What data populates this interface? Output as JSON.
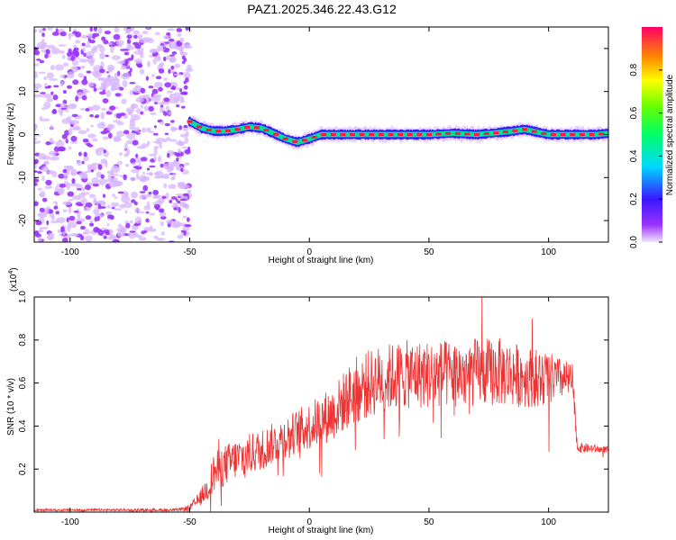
{
  "title": "PAZ1.2025.346.22.43.G12",
  "colors": {
    "snr_line": "#ee3333",
    "noise_purple": "#9a33ff",
    "noise_light": "#d7b6ff",
    "track_core": "#ff1a3c",
    "track_mid": "#00e0a0",
    "track_edge": "#3a18ff"
  },
  "chart_data": [
    {
      "id": "spectrogram",
      "type": "heatmap",
      "title": "PAZ1.2025.346.22.43.G12",
      "xlabel": "Height of straight line (km)",
      "ylabel": "Frequency (Hz)",
      "xlim": [
        -115,
        125
      ],
      "ylim": [
        -25,
        25
      ],
      "xticks": [
        -100,
        -50,
        0,
        50,
        100
      ],
      "yticks": [
        -20,
        -10,
        0,
        10,
        20
      ],
      "noise_region_x": [
        -115,
        -50
      ],
      "signal_track": {
        "x": [
          -50,
          -45,
          -40,
          -35,
          -30,
          -25,
          -20,
          -15,
          -10,
          -5,
          0,
          5,
          10,
          20,
          30,
          40,
          50,
          60,
          70,
          80,
          85,
          90,
          100,
          110,
          120,
          125
        ],
        "frequency_hz": [
          3,
          1.5,
          0.8,
          0.8,
          1.2,
          1.8,
          1.5,
          0.3,
          -1,
          -1.8,
          -1,
          0,
          0,
          0,
          0,
          0,
          0,
          0.3,
          0,
          0.5,
          0.8,
          1.2,
          0,
          0,
          0,
          0.3
        ]
      },
      "colorbar": {
        "label": "Normalized spectral amplitude",
        "range": [
          0,
          1
        ],
        "ticks": [
          "0.0",
          "0.2",
          "0.4",
          "0.6",
          "0.8"
        ],
        "ticks_values": [
          0,
          0.2,
          0.4,
          0.6,
          0.8
        ]
      }
    },
    {
      "id": "snr",
      "type": "line",
      "xlabel": "Height of straight line (km)",
      "ylabel": "SNR (10 * v/v)",
      "scale_label_main": "(x10",
      "scale_label_exp": "4",
      "scale_label_end": ")",
      "xlim": [
        -115,
        125
      ],
      "ylim": [
        0,
        1.0
      ],
      "xticks": [
        -100,
        -50,
        0,
        50,
        100
      ],
      "yticks": [
        0.2,
        0.4,
        0.6,
        0.8,
        1.0
      ],
      "ytick_labels": [
        "0.2",
        "0.4",
        "0.6",
        "0.8",
        "1.0"
      ],
      "envelope": {
        "x": [
          -115,
          -55,
          -50,
          -46,
          -42,
          -40,
          -35,
          -30,
          -20,
          -10,
          0,
          10,
          15,
          20,
          30,
          40,
          50,
          60,
          70,
          80,
          90,
          100,
          105,
          110,
          112,
          125
        ],
        "mean": [
          0.01,
          0.01,
          0.02,
          0.06,
          0.12,
          0.18,
          0.22,
          0.25,
          0.29,
          0.35,
          0.4,
          0.46,
          0.52,
          0.57,
          0.62,
          0.64,
          0.64,
          0.64,
          0.65,
          0.65,
          0.63,
          0.62,
          0.62,
          0.61,
          0.3,
          0.29
        ],
        "noise": [
          0.003,
          0.004,
          0.01,
          0.02,
          0.04,
          0.06,
          0.06,
          0.06,
          0.06,
          0.06,
          0.07,
          0.08,
          0.09,
          0.1,
          0.1,
          0.1,
          0.1,
          0.1,
          0.1,
          0.1,
          0.09,
          0.08,
          0.06,
          0.05,
          0.015,
          0.01
        ]
      },
      "peaks": [
        {
          "x": -38,
          "y": 0.34
        },
        {
          "x": 72,
          "y": 1.0
        },
        {
          "x": 93,
          "y": 0.9
        },
        {
          "x": 100,
          "y": 0.28
        },
        {
          "x": 112,
          "y": 0.3
        }
      ]
    }
  ]
}
